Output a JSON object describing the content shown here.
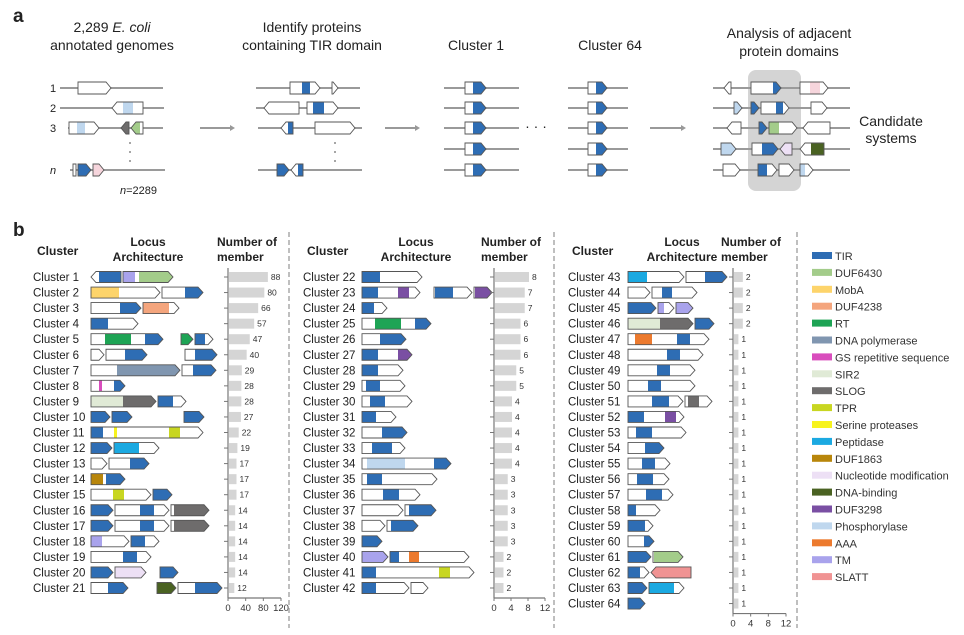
{
  "panel_a": {
    "letter": "a",
    "step1_line1_prefix": "2,289 ",
    "step1_line1_italic": "E. coli",
    "step1_line2": "annotated genomes",
    "step2_line1": "Identify proteins",
    "step2_line2": "containing TIR domain",
    "cluster_first": "Cluster 1",
    "cluster_last": "Cluster 64",
    "ellipsis": "· · ·",
    "step4_line1": "Analysis of adjacent",
    "step4_line2": "protein domains",
    "result_line1": "Candidate",
    "result_line2": "systems",
    "row_labels": [
      "1",
      "2",
      "3",
      "n"
    ],
    "n_label_italic": "n",
    "n_label_value": "=2289"
  },
  "panel_b": {
    "letter": "b",
    "header_cluster": "Cluster",
    "header_locus_1": "Locus",
    "header_locus_2": "Architecture",
    "header_count_1": "Number of",
    "header_count_2": "member",
    "highlight_color": "#2e5c9e",
    "axes": [
      {
        "ticks": [
          "0",
          "40",
          "80",
          "120"
        ],
        "max": 120
      },
      {
        "ticks": [
          "0",
          "4",
          "8",
          "12"
        ],
        "max": 12
      },
      {
        "ticks": [
          "0",
          "4",
          "8",
          "12"
        ],
        "max": 12
      }
    ],
    "clusters": [
      {
        "name": "Cluster 1",
        "count": 88,
        "highlighted": true
      },
      {
        "name": "Cluster 2",
        "count": 80,
        "highlighted": true
      },
      {
        "name": "Cluster 3",
        "count": 66,
        "highlighted": true
      },
      {
        "name": "Cluster 4",
        "count": 57,
        "highlighted": true
      },
      {
        "name": "Cluster 5",
        "count": 47,
        "highlighted": true
      },
      {
        "name": "Cluster 6",
        "count": 40,
        "highlighted": true
      },
      {
        "name": "Cluster 7",
        "count": 29,
        "highlighted": true
      },
      {
        "name": "Cluster 8",
        "count": 28,
        "highlighted": true
      },
      {
        "name": "Cluster 9",
        "count": 28,
        "highlighted": true
      },
      {
        "name": "Cluster 10",
        "count": 27,
        "highlighted": true
      },
      {
        "name": "Cluster 11",
        "count": 22,
        "highlighted": true
      },
      {
        "name": "Cluster 12",
        "count": 19,
        "highlighted": true
      },
      {
        "name": "Cluster 13",
        "count": 17,
        "highlighted": true
      },
      {
        "name": "Cluster 14",
        "count": 17,
        "highlighted": true
      },
      {
        "name": "Cluster 15",
        "count": 17,
        "highlighted": true
      },
      {
        "name": "Cluster 16",
        "count": 14,
        "highlighted": true
      },
      {
        "name": "Cluster 17",
        "count": 14,
        "highlighted": true
      },
      {
        "name": "Cluster 18",
        "count": 14,
        "highlighted": true
      },
      {
        "name": "Cluster 19",
        "count": 14,
        "highlighted": true
      },
      {
        "name": "Cluster 20",
        "count": 14,
        "highlighted": true
      },
      {
        "name": "Cluster 21",
        "count": 12,
        "highlighted": true
      },
      {
        "name": "Cluster 22",
        "count": 8,
        "highlighted": false
      },
      {
        "name": "Cluster 23",
        "count": 7,
        "highlighted": false
      },
      {
        "name": "Cluster 24",
        "count": 7,
        "highlighted": true
      },
      {
        "name": "Cluster 25",
        "count": 6,
        "highlighted": true
      },
      {
        "name": "Cluster 26",
        "count": 6,
        "highlighted": false
      },
      {
        "name": "Cluster 27",
        "count": 6,
        "highlighted": true
      },
      {
        "name": "Cluster 28",
        "count": 5,
        "highlighted": false
      },
      {
        "name": "Cluster 29",
        "count": 5,
        "highlighted": false
      },
      {
        "name": "Cluster 30",
        "count": 4,
        "highlighted": false
      },
      {
        "name": "Cluster 31",
        "count": 4,
        "highlighted": true
      },
      {
        "name": "Cluster 32",
        "count": 4,
        "highlighted": false
      },
      {
        "name": "Cluster 33",
        "count": 4,
        "highlighted": false
      },
      {
        "name": "Cluster 34",
        "count": 4,
        "highlighted": true
      },
      {
        "name": "Cluster 35",
        "count": 3,
        "highlighted": false
      },
      {
        "name": "Cluster 36",
        "count": 3,
        "highlighted": true
      },
      {
        "name": "Cluster 37",
        "count": 3,
        "highlighted": false
      },
      {
        "name": "Cluster 38",
        "count": 3,
        "highlighted": false
      },
      {
        "name": "Cluster 39",
        "count": 3,
        "highlighted": false
      },
      {
        "name": "Cluster 40",
        "count": 2,
        "highlighted": true
      },
      {
        "name": "Cluster 41",
        "count": 2,
        "highlighted": false
      },
      {
        "name": "Cluster 42",
        "count": 2,
        "highlighted": true
      },
      {
        "name": "Cluster 43",
        "count": 2,
        "highlighted": true
      },
      {
        "name": "Cluster 44",
        "count": 2,
        "highlighted": false
      },
      {
        "name": "Cluster 45",
        "count": 2,
        "highlighted": true
      },
      {
        "name": "Cluster 46",
        "count": 2,
        "highlighted": false
      },
      {
        "name": "Cluster 47",
        "count": 1,
        "highlighted": false
      },
      {
        "name": "Cluster 48",
        "count": 1,
        "highlighted": false
      },
      {
        "name": "Cluster 49",
        "count": 1,
        "highlighted": false
      },
      {
        "name": "Cluster 50",
        "count": 1,
        "highlighted": false
      },
      {
        "name": "Cluster 51",
        "count": 1,
        "highlighted": false
      },
      {
        "name": "Cluster 52",
        "count": 1,
        "highlighted": false
      },
      {
        "name": "Cluster 53",
        "count": 1,
        "highlighted": false
      },
      {
        "name": "Cluster 54",
        "count": 1,
        "highlighted": true
      },
      {
        "name": "Cluster 55",
        "count": 1,
        "highlighted": false
      },
      {
        "name": "Cluster 56",
        "count": 1,
        "highlighted": false
      },
      {
        "name": "Cluster 57",
        "count": 1,
        "highlighted": false
      },
      {
        "name": "Cluster 58",
        "count": 1,
        "highlighted": false
      },
      {
        "name": "Cluster 59",
        "count": 1,
        "highlighted": false
      },
      {
        "name": "Cluster 60",
        "count": 1,
        "highlighted": false
      },
      {
        "name": "Cluster 61",
        "count": 1,
        "highlighted": false
      },
      {
        "name": "Cluster 62",
        "count": 1,
        "highlighted": false
      },
      {
        "name": "Cluster 63",
        "count": 1,
        "highlighted": false
      },
      {
        "name": "Cluster 64",
        "count": 1,
        "highlighted": false
      }
    ],
    "legend": [
      {
        "label": "TIR",
        "color": "#2e6db4"
      },
      {
        "label": "DUF6430",
        "color": "#a3cc8a"
      },
      {
        "label": "MobA",
        "color": "#fdd46b"
      },
      {
        "label": "DUF4238",
        "color": "#f4a57d"
      },
      {
        "label": "RT",
        "color": "#1ea455"
      },
      {
        "label": "DNA polymerase",
        "color": "#8096b0"
      },
      {
        "label": "GS repetitive sequence",
        "color": "#d94dbd"
      },
      {
        "label": "SIR2",
        "color": "#e0ead6"
      },
      {
        "label": "SLOG",
        "color": "#6e6c6c"
      },
      {
        "label": "TPR",
        "color": "#c8d621"
      },
      {
        "label": "Serine proteases",
        "color": "#f7f31e"
      },
      {
        "label": "Peptidase",
        "color": "#1ba9e1"
      },
      {
        "label": "DUF1863",
        "color": "#b8860b"
      },
      {
        "label": "Nucleotide modification",
        "color": "#ede0f5"
      },
      {
        "label": "DNA-binding",
        "color": "#4a6222"
      },
      {
        "label": "DUF3298",
        "color": "#7a4fa3"
      },
      {
        "label": "Phosphorylase",
        "color": "#bfd7ee"
      },
      {
        "label": "AAA",
        "color": "#ec7a2e"
      },
      {
        "label": "TM",
        "color": "#a9a3ec"
      },
      {
        "label": "SLATT",
        "color": "#f09393"
      }
    ]
  }
}
